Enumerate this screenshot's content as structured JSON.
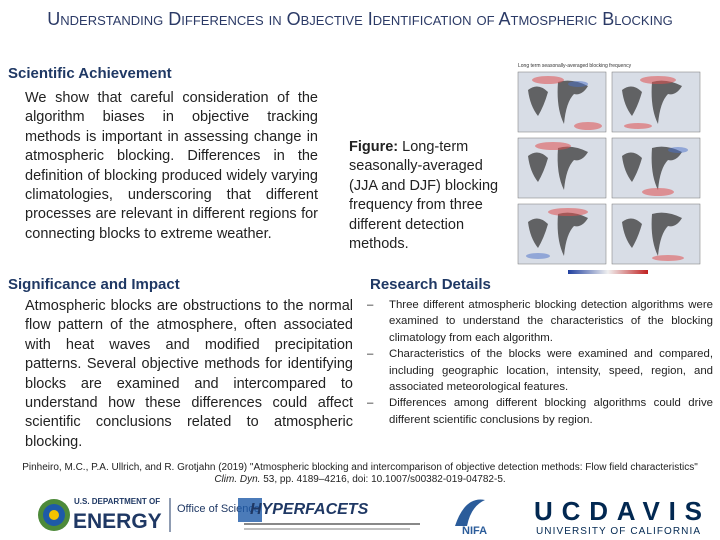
{
  "header": {
    "title": "Understanding Differences in Objective Identification of Atmospheric Blocking"
  },
  "achievement": {
    "heading": "Scientific Achievement",
    "text": "We show that careful consideration of the algorithm biases in objective tracking methods is important in assessing change in atmospheric blocking. Differences in the definition of blocking produced widely varying climatologies, underscoring that different processes are relevant in different regions for connecting blocks to extreme weather."
  },
  "figure": {
    "title": "Long term seasonally-averaged blocking frequency",
    "caption_label": "Figure:",
    "caption": "Long-term seasonally-averaged (JJA and DJF) blocking frequency from three different detection methods."
  },
  "significance": {
    "heading": "Significance and Impact",
    "text": "Atmospheric blocks are obstructions to the normal flow pattern of the atmosphere, often associated with heat waves and modified precipitation patterns. Several objective methods for identifying blocks are examined and intercompared to understand how these differences could affect scientific conclusions related to atmospheric blocking."
  },
  "details": {
    "heading": "Research Details",
    "items": [
      "Three different atmospheric blocking detection algorithms were examined to understand the characteristics of the blocking climatology from each algorithm.",
      "Characteristics of the blocks were examined and compared, including geographic location, intensity, speed, region, and associated meteorological features.",
      "Differences among different blocking algorithms could drive different scientific conclusions by region."
    ]
  },
  "citation": {
    "before": "Pinheiro, M.C., P.A. Ullrich, and R. Grotjahn (2019) \"Atmospheric blocking and intercomparison of objective detection methods: Flow field characteristics\" ",
    "journal": "Clim. Dyn.",
    "after": " 53, pp. 4189–4216, doi: 10.1007/s00382-019-04782-5."
  },
  "footer": {
    "doe_top": "U.S. DEPARTMENT OF",
    "doe_main": "ENERGY",
    "office": "Office of Science",
    "hyperfacets": "HYPERFACETS",
    "nifa": "NIFA",
    "ucdavis": "UCDAVIS",
    "uc": "UNIVERSITY OF CALIFORNIA"
  }
}
